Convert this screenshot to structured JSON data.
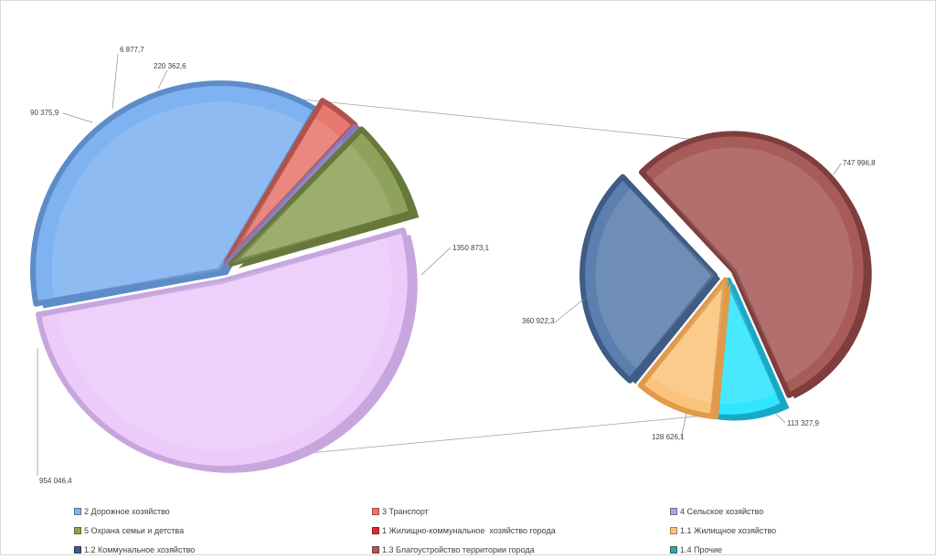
{
  "chart_data": {
    "type": "pie-of-pie",
    "title": "",
    "main_pie": {
      "slices": [
        {
          "name": "2 Дорожное хозяйство",
          "value": 954046.4,
          "label": "954 046,4",
          "color": "#7fb2f0",
          "side": "#5d8cc8"
        },
        {
          "name": "3 Транспорт",
          "value": 90375.9,
          "label": "90 375,9",
          "color": "#e8776f",
          "side": "#b0524c"
        },
        {
          "name": "4 Сельское хозяйство",
          "value": 6877.7,
          "label": "6 877,7",
          "color": "#b7a0e0",
          "side": "#8a76b8"
        },
        {
          "name": "5 Охрана семьи и детства",
          "value": 220362.6,
          "label": "220 362,6",
          "color": "#8fa25a",
          "side": "#66793a"
        },
        {
          "name": "1 Жилищно-коммунальное  хозяйство города",
          "value": 1350873.1,
          "label": "1350 873,1",
          "color": "#eccbfb",
          "side": "#c7a6de"
        }
      ]
    },
    "secondary_pie": {
      "slices": [
        {
          "name": "1.3 Благоустройство территории города",
          "value": 747996.8,
          "label": "747 996,8",
          "color": "#a85c5a",
          "side": "#7f3e3d"
        },
        {
          "name": "1.4 Прочие",
          "value": 113327.9,
          "label": "113 327,9",
          "color": "#2fe6ff",
          "side": "#18a8c8"
        },
        {
          "name": "1.1 Жилищное хозяйство",
          "value": 128626.1,
          "label": "128 626,1",
          "color": "#fbc47c",
          "side": "#e09a4a"
        },
        {
          "name": "1.2 Коммунальное хозяйство",
          "value": 360922.3,
          "label": "360 922,3",
          "color": "#5b7fae",
          "side": "#3f5c85"
        }
      ]
    },
    "legend": [
      {
        "name": "2 Дорожное хозяйство",
        "color": "#7fb2f0"
      },
      {
        "name": "3 Транспорт",
        "color": "#e8776f"
      },
      {
        "name": "4 Сельское хозяйство",
        "color": "#b7a0e0"
      },
      {
        "name": "5 Охрана семьи и детства",
        "color": "#8fa25a"
      },
      {
        "name": "1 Жилищно-коммунальное  хозяйство города",
        "color": "#e02b2b"
      },
      {
        "name": "1.1 Жилищное хозяйство",
        "color": "#fbc47c"
      },
      {
        "name": "1.2 Коммунальное хозяйство",
        "color": "#3f5c85"
      },
      {
        "name": "1.3 Благоустройство территории города",
        "color": "#a85c5a"
      },
      {
        "name": "1.4 Прочие",
        "color": "#3aa5a0"
      }
    ],
    "legend_position": "bottom"
  }
}
